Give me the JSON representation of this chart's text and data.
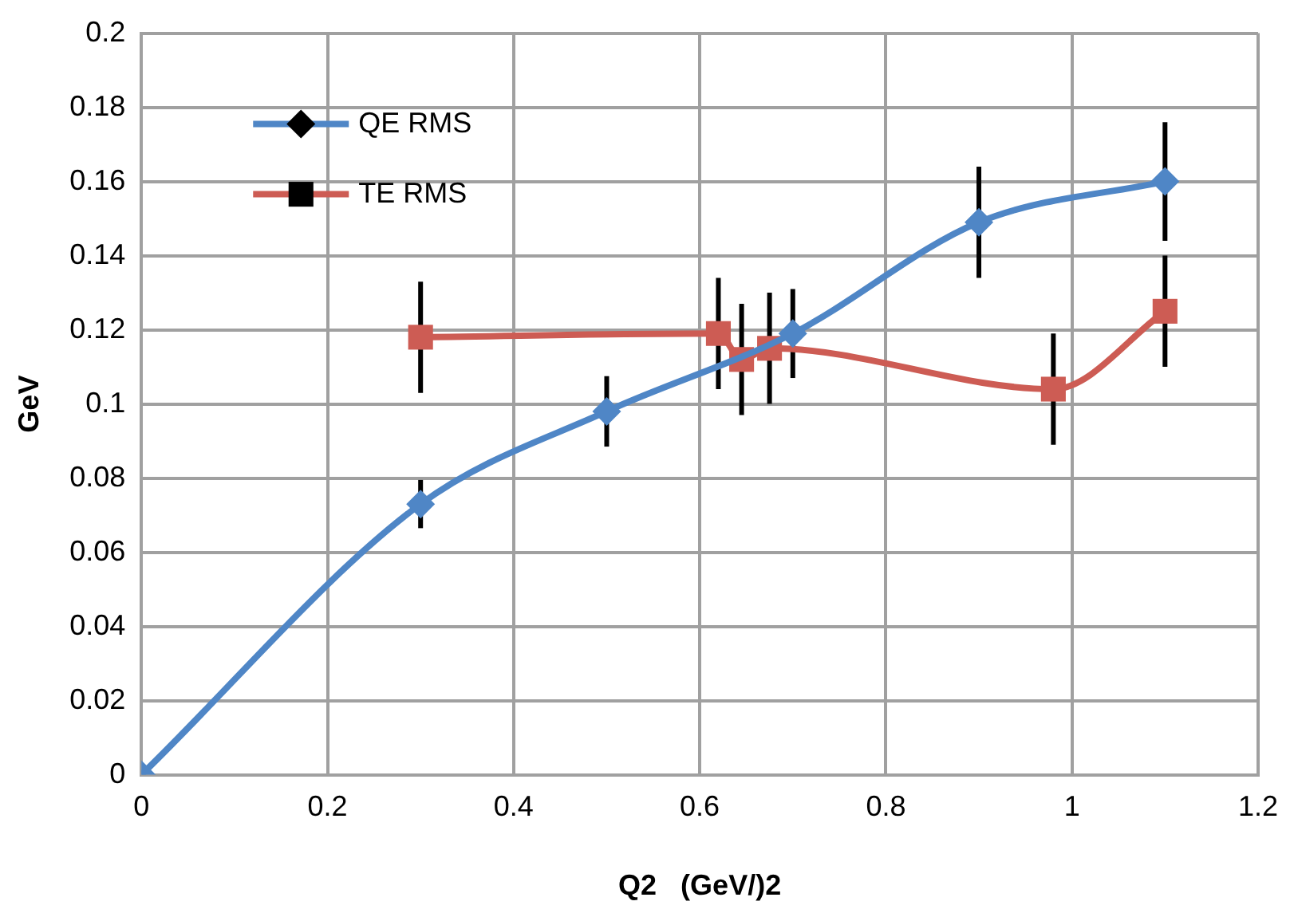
{
  "chart_data": {
    "type": "line",
    "xlabel": "Q2   (GeV/)2",
    "ylabel": "GeV",
    "xlim": [
      0,
      1.2
    ],
    "xticks": [
      0,
      0.2,
      0.4,
      0.6,
      0.8,
      1,
      1.2
    ],
    "ylim": [
      0,
      0.2
    ],
    "yticks": [
      0,
      0.02,
      0.04,
      0.06,
      0.08,
      0.1,
      0.12,
      0.14,
      0.16,
      0.18,
      0.2
    ],
    "grid": true,
    "legend": "top left",
    "line_style": "solid",
    "series": [
      {
        "name": "QE RMS",
        "color": "#4f86c6",
        "marker": "diamond",
        "x": [
          0,
          0.3,
          0.5,
          0.7,
          0.9,
          1.1
        ],
        "values": [
          0,
          0.073,
          0.098,
          0.119,
          0.149,
          0.16
        ],
        "errors": [
          null,
          0.0065,
          0.0095,
          0.012,
          0.015,
          0.016
        ]
      },
      {
        "name": "TE RMS",
        "color": "#cd5c54",
        "marker": "square",
        "x": [
          0.3,
          0.62,
          0.645,
          0.675,
          0.98,
          1.1
        ],
        "values": [
          0.118,
          0.119,
          0.112,
          0.115,
          0.104,
          0.125
        ],
        "errors": [
          0.015,
          0.015,
          0.015,
          0.015,
          0.015,
          0.015
        ]
      }
    ]
  }
}
